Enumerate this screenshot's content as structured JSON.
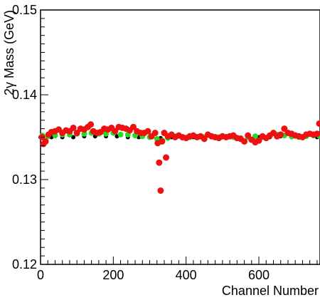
{
  "chart_data": {
    "type": "scatter",
    "title": "",
    "xlabel": "Channel Number",
    "ylabel": "2γ Mass (GeV)",
    "xlim": [
      0,
      768
    ],
    "ylim": [
      0.12,
      0.15
    ],
    "xticks": [
      0,
      200,
      400,
      600
    ],
    "xtick_labels": [
      "0",
      "200",
      "400",
      "600"
    ],
    "yticks": [
      0.12,
      0.13,
      0.14,
      0.15
    ],
    "ytick_labels": [
      "0.12",
      "0.13",
      "0.14",
      "0.15"
    ],
    "grid": false,
    "series": [
      {
        "color": "#000000",
        "marker": "dot",
        "x": [
          0,
          30,
          60,
          90,
          120,
          150,
          180,
          210,
          240,
          270,
          300,
          330,
          360,
          390,
          420,
          450,
          480,
          510,
          540,
          570,
          600,
          630,
          660,
          690,
          720,
          760
        ],
        "y": [
          0.135,
          0.135,
          0.135,
          0.135,
          0.1351,
          0.1351,
          0.1351,
          0.1351,
          0.135,
          0.135,
          0.135,
          0.1349,
          0.135,
          0.135,
          0.135,
          0.135,
          0.135,
          0.135,
          0.135,
          0.135,
          0.135,
          0.135,
          0.1351,
          0.135,
          0.135,
          0.135
        ]
      },
      {
        "color": "#22dd22",
        "marker": "dot",
        "x": [
          5,
          20,
          40,
          60,
          80,
          100,
          120,
          140,
          160,
          180,
          200,
          220,
          240,
          260,
          280,
          300,
          320,
          335,
          350,
          370,
          390,
          410,
          430,
          450,
          470,
          490,
          510,
          530,
          550,
          570,
          590,
          610,
          630,
          650,
          670,
          690,
          710,
          730,
          750,
          765
        ],
        "y": [
          0.1352,
          0.1351,
          0.1352,
          0.1353,
          0.1353,
          0.1354,
          0.1354,
          0.1355,
          0.1354,
          0.1354,
          0.1355,
          0.1353,
          0.1353,
          0.1352,
          0.1351,
          0.135,
          0.1348,
          0.1346,
          0.1349,
          0.1351,
          0.135,
          0.135,
          0.135,
          0.135,
          0.1351,
          0.135,
          0.135,
          0.135,
          0.1349,
          0.135,
          0.1351,
          0.135,
          0.1352,
          0.1353,
          0.1352,
          0.1351,
          0.135,
          0.1351,
          0.1352,
          0.1352
        ]
      },
      {
        "color": "#ee1111",
        "marker": "dot",
        "x": [
          4,
          8,
          14,
          22,
          30,
          40,
          50,
          60,
          70,
          80,
          90,
          100,
          110,
          120,
          130,
          138,
          145,
          155,
          165,
          175,
          185,
          195,
          205,
          215,
          225,
          235,
          245,
          255,
          265,
          275,
          285,
          295,
          305,
          315,
          322,
          326,
          330,
          334,
          340,
          345,
          350,
          360,
          370,
          380,
          390,
          400,
          410,
          420,
          430,
          440,
          450,
          460,
          470,
          480,
          490,
          500,
          510,
          520,
          530,
          540,
          550,
          560,
          570,
          580,
          590,
          600,
          610,
          620,
          630,
          640,
          650,
          660,
          670,
          680,
          690,
          700,
          710,
          720,
          730,
          740,
          750,
          760,
          766
        ],
        "y": [
          0.135,
          0.1342,
          0.1345,
          0.1353,
          0.1356,
          0.1357,
          0.1359,
          0.1355,
          0.1358,
          0.1357,
          0.1361,
          0.1355,
          0.136,
          0.1359,
          0.1362,
          0.1365,
          0.1357,
          0.1355,
          0.1356,
          0.136,
          0.1359,
          0.1361,
          0.1357,
          0.1362,
          0.1361,
          0.136,
          0.1358,
          0.1362,
          0.1357,
          0.1355,
          0.1355,
          0.1357,
          0.1351,
          0.1355,
          0.1343,
          0.132,
          0.1287,
          0.1345,
          0.1355,
          0.1326,
          0.1351,
          0.1353,
          0.135,
          0.1352,
          0.135,
          0.1349,
          0.1351,
          0.1352,
          0.135,
          0.1351,
          0.1348,
          0.1353,
          0.1351,
          0.135,
          0.1349,
          0.1351,
          0.135,
          0.1351,
          0.1352,
          0.1349,
          0.1348,
          0.1345,
          0.1352,
          0.1347,
          0.1344,
          0.1346,
          0.1351,
          0.1349,
          0.1352,
          0.1355,
          0.1351,
          0.1353,
          0.136,
          0.1355,
          0.1354,
          0.1352,
          0.1351,
          0.135,
          0.1353,
          0.1354,
          0.1353,
          0.1354,
          0.1366
        ]
      }
    ]
  }
}
